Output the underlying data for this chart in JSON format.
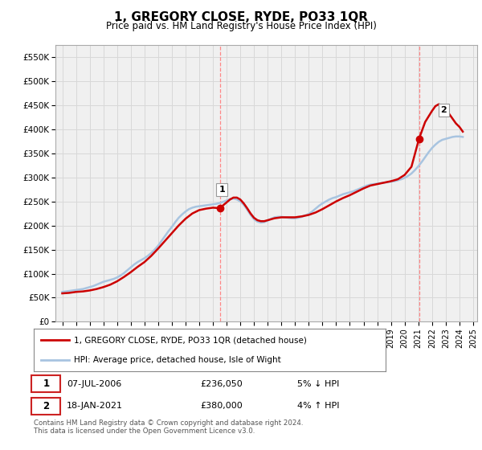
{
  "title": "1, GREGORY CLOSE, RYDE, PO33 1QR",
  "subtitle": "Price paid vs. HM Land Registry's House Price Index (HPI)",
  "footer": "Contains HM Land Registry data © Crown copyright and database right 2024.\nThis data is licensed under the Open Government Licence v3.0.",
  "legend_line1": "1, GREGORY CLOSE, RYDE, PO33 1QR (detached house)",
  "legend_line2": "HPI: Average price, detached house, Isle of Wight",
  "sale1_label": "1",
  "sale1_date": "07-JUL-2006",
  "sale1_price": "£236,050",
  "sale1_hpi": "5% ↓ HPI",
  "sale2_label": "2",
  "sale2_date": "18-JAN-2021",
  "sale2_price": "£380,000",
  "sale2_hpi": "4% ↑ HPI",
  "ylim": [
    0,
    575000
  ],
  "yticks": [
    0,
    50000,
    100000,
    150000,
    200000,
    250000,
    300000,
    350000,
    400000,
    450000,
    500000,
    550000
  ],
  "ytick_labels": [
    "£0",
    "£50K",
    "£100K",
    "£150K",
    "£200K",
    "£250K",
    "£300K",
    "£350K",
    "£400K",
    "£450K",
    "£500K",
    "£550K"
  ],
  "hpi_color": "#a8c4e0",
  "price_color": "#cc0000",
  "sale_dot_color": "#cc0000",
  "vline_color": "#ff8888",
  "bg_color": "#f0f0f0",
  "grid_color": "#d8d8d8",
  "hpi_x": [
    1995.0,
    1995.25,
    1995.5,
    1995.75,
    1996.0,
    1996.25,
    1996.5,
    1996.75,
    1997.0,
    1997.25,
    1997.5,
    1997.75,
    1998.0,
    1998.25,
    1998.5,
    1998.75,
    1999.0,
    1999.25,
    1999.5,
    1999.75,
    2000.0,
    2000.25,
    2000.5,
    2000.75,
    2001.0,
    2001.25,
    2001.5,
    2001.75,
    2002.0,
    2002.25,
    2002.5,
    2002.75,
    2003.0,
    2003.25,
    2003.5,
    2003.75,
    2004.0,
    2004.25,
    2004.5,
    2004.75,
    2005.0,
    2005.25,
    2005.5,
    2005.75,
    2006.0,
    2006.25,
    2006.5,
    2006.75,
    2007.0,
    2007.25,
    2007.5,
    2007.75,
    2008.0,
    2008.25,
    2008.5,
    2008.75,
    2009.0,
    2009.25,
    2009.5,
    2009.75,
    2010.0,
    2010.25,
    2010.5,
    2010.75,
    2011.0,
    2011.25,
    2011.5,
    2011.75,
    2012.0,
    2012.25,
    2012.5,
    2012.75,
    2013.0,
    2013.25,
    2013.5,
    2013.75,
    2014.0,
    2014.25,
    2014.5,
    2014.75,
    2015.0,
    2015.25,
    2015.5,
    2015.75,
    2016.0,
    2016.25,
    2016.5,
    2016.75,
    2017.0,
    2017.25,
    2017.5,
    2017.75,
    2018.0,
    2018.25,
    2018.5,
    2018.75,
    2019.0,
    2019.25,
    2019.5,
    2019.75,
    2020.0,
    2020.25,
    2020.5,
    2020.75,
    2021.0,
    2021.25,
    2021.5,
    2021.75,
    2022.0,
    2022.25,
    2022.5,
    2022.75,
    2023.0,
    2023.25,
    2023.5,
    2023.75,
    2024.0,
    2024.25
  ],
  "hpi_y": [
    62000,
    63000,
    64000,
    65000,
    66000,
    67000,
    68000,
    70000,
    72000,
    74000,
    77000,
    80000,
    83000,
    85000,
    87000,
    89000,
    92000,
    96000,
    101000,
    107000,
    113000,
    119000,
    124000,
    128000,
    132000,
    137000,
    143000,
    150000,
    158000,
    168000,
    178000,
    188000,
    197000,
    207000,
    216000,
    223000,
    229000,
    234000,
    237000,
    239000,
    240000,
    241000,
    242000,
    243000,
    244000,
    245000,
    247000,
    249000,
    252000,
    255000,
    256000,
    254000,
    250000,
    243000,
    233000,
    222000,
    213000,
    208000,
    206000,
    207000,
    210000,
    214000,
    217000,
    218000,
    218000,
    217000,
    216000,
    215000,
    215000,
    216000,
    218000,
    221000,
    224000,
    229000,
    235000,
    241000,
    246000,
    250000,
    254000,
    257000,
    259000,
    262000,
    265000,
    267000,
    269000,
    271000,
    274000,
    277000,
    280000,
    283000,
    285000,
    286000,
    287000,
    288000,
    289000,
    290000,
    291000,
    292000,
    294000,
    296000,
    299000,
    303000,
    308000,
    315000,
    323000,
    332000,
    342000,
    352000,
    361000,
    368000,
    374000,
    378000,
    380000,
    382000,
    384000,
    385000,
    385000,
    384000
  ],
  "price_x": [
    1995.0,
    1995.5,
    1996.0,
    1996.5,
    1997.0,
    1997.5,
    1998.0,
    1998.5,
    1999.0,
    1999.5,
    2000.0,
    2000.5,
    2001.0,
    2001.5,
    2002.0,
    2002.5,
    2003.0,
    2003.5,
    2004.0,
    2004.5,
    2005.0,
    2005.5,
    2006.0,
    2006.5,
    2007.0,
    2007.25,
    2007.5,
    2007.75,
    2008.0,
    2008.25,
    2008.5,
    2008.75,
    2009.0,
    2009.25,
    2009.5,
    2009.75,
    2010.0,
    2010.25,
    2010.5,
    2010.75,
    2011.0,
    2011.5,
    2012.0,
    2012.5,
    2013.0,
    2013.5,
    2014.0,
    2014.5,
    2015.0,
    2015.5,
    2016.0,
    2016.5,
    2017.0,
    2017.5,
    2018.0,
    2018.5,
    2019.0,
    2019.5,
    2020.0,
    2020.5,
    2021.05,
    2021.5,
    2022.0,
    2022.25,
    2022.5,
    2022.75,
    2023.0,
    2023.25,
    2023.5,
    2023.75,
    2024.0,
    2024.25
  ],
  "price_y": [
    59000,
    60000,
    62000,
    63000,
    65000,
    68000,
    72000,
    77000,
    84000,
    93000,
    103000,
    114000,
    124000,
    137000,
    152000,
    168000,
    184000,
    200000,
    214000,
    225000,
    232000,
    235000,
    237000,
    236050,
    248000,
    254000,
    258000,
    258000,
    254000,
    246000,
    236000,
    225000,
    216000,
    211000,
    209000,
    209000,
    211000,
    213000,
    215000,
    216000,
    217000,
    217000,
    217000,
    219000,
    222000,
    227000,
    234000,
    242000,
    250000,
    257000,
    263000,
    270000,
    277000,
    283000,
    286000,
    289000,
    292000,
    296000,
    305000,
    322000,
    380000,
    415000,
    438000,
    448000,
    452000,
    448000,
    440000,
    432000,
    422000,
    412000,
    405000,
    395000
  ],
  "sale1_x": 2006.5,
  "sale1_y": 236050,
  "sale2_x": 2021.05,
  "sale2_y": 380000,
  "vline1_x": 2006.5,
  "vline2_x": 2021.05,
  "xtick_start": 1995,
  "xtick_end": 2025
}
